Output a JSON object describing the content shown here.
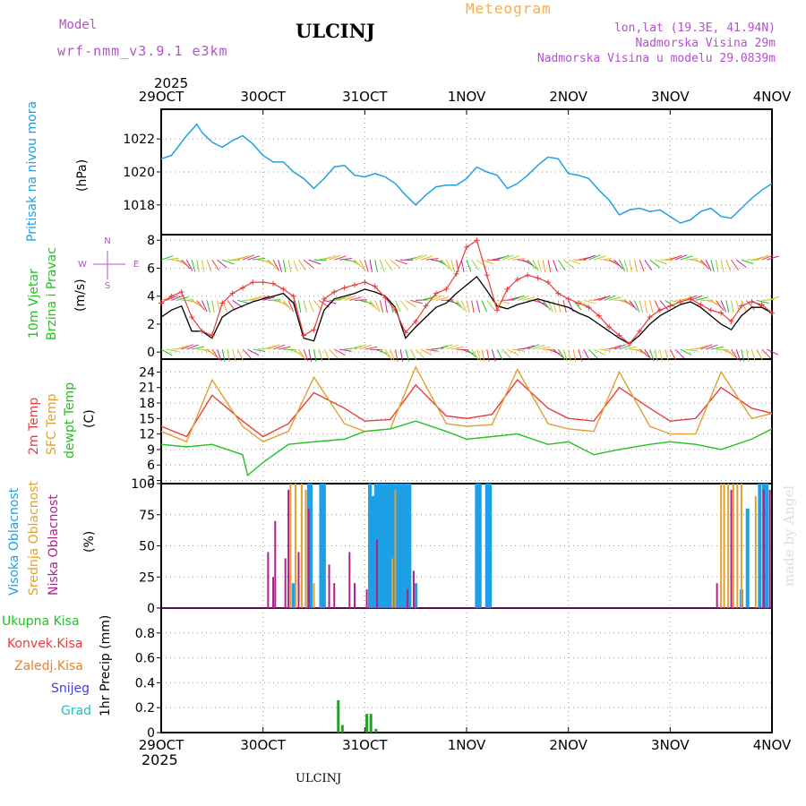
{
  "header": {
    "model_label": "Model",
    "model_name": "wrf-nmm_v3.9.1 e3km",
    "station": "ULCINJ",
    "product": "Meteogram",
    "coords": "lon,lat (19.3E, 41.94N)",
    "elevation": "Nadmorska Visina 29m",
    "model_elevation": "Nadmorska Visina u modelu 29.0839m",
    "watermark": "made by Angel",
    "footer_station": "ULCINJ",
    "top_year": "2025",
    "bottom_year": "2025"
  },
  "colors": {
    "pressure": "#1ea0e6",
    "temp": "#e83c3c",
    "sfc": "#e0a030",
    "dew": "#22c022",
    "wind": "#000000",
    "gust": "#e83c3c",
    "high_cloud": "#1ea0e6",
    "mid_cloud": "#e0a030",
    "low_cloud": "#b0208c",
    "precip": "#22a022",
    "conv": "#e83c3c",
    "frz": "#f08020",
    "snow": "#4040e0",
    "grad": "#20c0c0"
  },
  "chart_data": [
    {
      "type": "line",
      "title": "Pritisak na nivou mora",
      "ylabel": "(hPa)",
      "x_labels": [
        "29OCT",
        "30OCT",
        "31OCT",
        "1NOV",
        "2NOV",
        "3NOV",
        "4NOV"
      ],
      "ylim": [
        1016.2,
        1023.8
      ],
      "yticks": [
        1018,
        1020,
        1022
      ],
      "series": [
        {
          "name": "Pritisak na nivou mora",
          "x": [
            0,
            0.1,
            0.25,
            0.35,
            0.4,
            0.5,
            0.6,
            0.7,
            0.8,
            0.9,
            1.0,
            1.1,
            1.2,
            1.3,
            1.4,
            1.5,
            1.6,
            1.7,
            1.8,
            1.9,
            2.0,
            2.1,
            2.2,
            2.3,
            2.4,
            2.5,
            2.6,
            2.7,
            2.8,
            2.9,
            3.0,
            3.1,
            3.2,
            3.3,
            3.4,
            3.5,
            3.6,
            3.7,
            3.8,
            3.9,
            4.0,
            4.1,
            4.2,
            4.3,
            4.4,
            4.5,
            4.6,
            4.7,
            4.8,
            4.9,
            5.0,
            5.1,
            5.2,
            5.3,
            5.4,
            5.5,
            5.6,
            5.7,
            5.8,
            5.9,
            6.0
          ],
          "values": [
            1020.8,
            1021.0,
            1022.2,
            1022.9,
            1022.4,
            1021.8,
            1021.5,
            1021.9,
            1022.2,
            1021.7,
            1021.0,
            1020.6,
            1020.6,
            1020.0,
            1019.6,
            1019.0,
            1019.6,
            1020.3,
            1020.4,
            1019.8,
            1019.7,
            1019.9,
            1019.7,
            1019.3,
            1018.6,
            1018.0,
            1018.6,
            1019.1,
            1019.2,
            1019.2,
            1019.6,
            1020.3,
            1020.0,
            1019.8,
            1019.0,
            1019.3,
            1019.8,
            1020.4,
            1020.9,
            1020.8,
            1019.9,
            1019.8,
            1019.6,
            1018.9,
            1018.3,
            1017.4,
            1017.7,
            1017.8,
            1017.6,
            1017.7,
            1017.3,
            1016.9,
            1017.1,
            1017.6,
            1017.8,
            1017.3,
            1017.2,
            1017.8,
            1018.4,
            1018.9,
            1019.3
          ]
        }
      ]
    },
    {
      "type": "line",
      "title": "10m Vjetar Brzina i Pravac",
      "ylabel": "(m/s)",
      "ylim": [
        -0.5,
        8.4
      ],
      "yticks": [
        0,
        2,
        4,
        6,
        8
      ],
      "compass": {
        "n": "N",
        "s": "S",
        "e": "E",
        "w": "W"
      },
      "series": [
        {
          "name": "Brzina vjetra",
          "x": [
            0,
            0.1,
            0.2,
            0.3,
            0.4,
            0.5,
            0.6,
            0.7,
            0.8,
            0.9,
            1.0,
            1.1,
            1.2,
            1.3,
            1.4,
            1.5,
            1.6,
            1.7,
            1.8,
            1.9,
            2.0,
            2.1,
            2.2,
            2.3,
            2.4,
            2.5,
            2.6,
            2.7,
            2.8,
            2.9,
            3.0,
            3.1,
            3.2,
            3.3,
            3.4,
            3.5,
            3.6,
            3.7,
            3.8,
            3.9,
            4.0,
            4.1,
            4.2,
            4.3,
            4.4,
            4.5,
            4.6,
            4.7,
            4.8,
            4.9,
            5.0,
            5.1,
            5.2,
            5.3,
            5.4,
            5.5,
            5.6,
            5.7,
            5.8,
            5.9,
            6.0
          ],
          "values": [
            2.5,
            3.0,
            3.3,
            1.5,
            1.5,
            1.0,
            2.5,
            3.0,
            3.3,
            3.6,
            3.8,
            4.0,
            4.2,
            3.5,
            1.0,
            0.8,
            3.0,
            3.8,
            4.0,
            4.2,
            4.5,
            4.3,
            4.0,
            3.2,
            1.0,
            1.8,
            2.5,
            3.2,
            3.5,
            4.2,
            4.8,
            5.4,
            4.4,
            3.3,
            3.1,
            3.4,
            3.6,
            3.8,
            3.6,
            3.4,
            3.2,
            2.8,
            2.5,
            2.0,
            1.5,
            1.0,
            0.6,
            1.2,
            2.0,
            2.6,
            3.0,
            3.4,
            3.6,
            3.2,
            2.6,
            2.0,
            1.6,
            2.6,
            3.2,
            3.2,
            2.8
          ]
        },
        {
          "name": "Udari",
          "x": [
            0,
            0.1,
            0.2,
            0.3,
            0.4,
            0.5,
            0.6,
            0.7,
            0.8,
            0.9,
            1.0,
            1.1,
            1.2,
            1.3,
            1.4,
            1.5,
            1.6,
            1.7,
            1.8,
            1.9,
            2.0,
            2.1,
            2.2,
            2.3,
            2.4,
            2.5,
            2.6,
            2.7,
            2.8,
            2.9,
            3.0,
            3.1,
            3.2,
            3.3,
            3.4,
            3.5,
            3.6,
            3.7,
            3.8,
            3.9,
            4.0,
            4.1,
            4.2,
            4.3,
            4.4,
            4.5,
            4.6,
            4.7,
            4.8,
            4.9,
            5.0,
            5.1,
            5.2,
            5.3,
            5.4,
            5.5,
            5.6,
            5.7,
            5.8,
            5.9,
            6.0
          ],
          "values": [
            3.5,
            4.0,
            4.3,
            2.5,
            1.5,
            1.2,
            3.5,
            4.2,
            4.6,
            5.0,
            5.0,
            4.9,
            4.5,
            4.0,
            1.2,
            1.6,
            3.8,
            4.3,
            4.6,
            4.8,
            5.0,
            4.7,
            3.9,
            3.0,
            1.4,
            2.2,
            3.3,
            4.2,
            4.5,
            5.6,
            7.5,
            8.0,
            5.5,
            3.0,
            4.5,
            5.2,
            5.5,
            5.3,
            5.0,
            4.2,
            3.8,
            3.5,
            3.2,
            2.6,
            1.8,
            1.2,
            0.6,
            1.5,
            2.5,
            3.0,
            3.3,
            3.6,
            3.8,
            3.4,
            3.0,
            2.8,
            2.2,
            3.3,
            3.6,
            3.4,
            2.8
          ]
        }
      ]
    },
    {
      "type": "line",
      "title": "2m Temp / SFC Temp / dewpt Temp",
      "ylabel": "(C)",
      "ylim": [
        2.4,
        26.5
      ],
      "yticks": [
        3,
        6,
        9,
        12,
        15,
        18,
        21,
        24
      ],
      "series": [
        {
          "name": "2m Temp",
          "x": [
            0,
            0.25,
            0.5,
            0.8,
            1.0,
            1.25,
            1.5,
            1.8,
            2.0,
            2.25,
            2.5,
            2.8,
            3.0,
            3.25,
            3.5,
            3.8,
            4.0,
            4.25,
            4.5,
            4.8,
            5.0,
            5.25,
            5.5,
            5.8,
            6.0
          ],
          "values": [
            13.5,
            11.5,
            19.5,
            14.5,
            11.5,
            14.0,
            20.0,
            17.0,
            14.5,
            14.8,
            21.5,
            15.5,
            15.0,
            15.8,
            22.5,
            17.0,
            15.0,
            14.5,
            21.0,
            17.0,
            14.5,
            15.0,
            21.0,
            17.0,
            16.0
          ]
        },
        {
          "name": "SFC Temp",
          "x": [
            0,
            0.25,
            0.5,
            0.8,
            1.0,
            1.25,
            1.5,
            1.8,
            2.0,
            2.25,
            2.5,
            2.8,
            3.0,
            3.25,
            3.5,
            3.8,
            4.0,
            4.25,
            4.5,
            4.8,
            5.0,
            5.25,
            5.5,
            5.8,
            6.0
          ],
          "values": [
            12.5,
            10.5,
            22.5,
            13.5,
            10.5,
            12.5,
            23.0,
            14.0,
            12.5,
            13.0,
            25.0,
            14.0,
            13.5,
            13.8,
            24.5,
            14.0,
            13.0,
            12.5,
            24.0,
            13.5,
            12.0,
            12.0,
            24.0,
            15.0,
            16.0
          ]
        },
        {
          "name": "dewpt Temp",
          "x": [
            0,
            0.25,
            0.5,
            0.8,
            0.85,
            1.0,
            1.25,
            1.5,
            1.8,
            2.0,
            2.25,
            2.5,
            2.8,
            3.0,
            3.25,
            3.5,
            3.8,
            4.0,
            4.25,
            4.5,
            4.8,
            5.0,
            5.25,
            5.5,
            5.8,
            6.0
          ],
          "values": [
            10.0,
            9.5,
            10.0,
            8.0,
            4.0,
            6.5,
            10.0,
            10.5,
            11.0,
            12.5,
            13.0,
            14.5,
            12.5,
            11.0,
            11.5,
            12.0,
            10.0,
            10.5,
            8.0,
            9.0,
            10.0,
            10.5,
            10.0,
            9.0,
            11.0,
            13.0
          ]
        }
      ]
    },
    {
      "type": "bar",
      "title": "Visoka / Srednja / Niska Oblacnost",
      "ylabel": "(%)",
      "ylim": [
        0,
        100
      ],
      "yticks": [
        0,
        25,
        50,
        75,
        100
      ],
      "series": [
        {
          "name": "Visoka Oblacnost",
          "x": [
            1.3,
            1.45,
            1.47,
            1.57,
            1.6,
            2.05,
            2.08,
            2.11,
            2.14,
            2.17,
            2.2,
            2.23,
            2.26,
            2.29,
            2.32,
            2.35,
            2.38,
            2.41,
            2.44,
            2.5,
            3.1,
            3.13,
            3.2,
            3.23,
            5.7,
            5.76,
            5.88,
            5.92,
            5.95
          ],
          "values": [
            20,
            100,
            100,
            100,
            100,
            100,
            90,
            100,
            100,
            100,
            100,
            100,
            100,
            100,
            100,
            100,
            100,
            100,
            100,
            20,
            100,
            100,
            100,
            100,
            15,
            80,
            100,
            100,
            100
          ]
        },
        {
          "name": "Srednja Oblacnost",
          "x": [
            1.27,
            1.32,
            1.38,
            1.42,
            1.5,
            2.27,
            2.3,
            5.5,
            5.53,
            5.57,
            5.62,
            5.66,
            5.7,
            5.84
          ],
          "values": [
            100,
            100,
            100,
            95,
            20,
            40,
            95,
            100,
            100,
            100,
            100,
            100,
            100,
            90
          ]
        },
        {
          "name": "Niska Oblacnost",
          "x": [
            1.05,
            1.1,
            1.12,
            1.22,
            1.25,
            1.35,
            1.45,
            1.65,
            1.7,
            1.85,
            1.9,
            2.02,
            2.12,
            2.42,
            2.48,
            5.46,
            5.6,
            5.92,
            5.98
          ],
          "values": [
            45,
            25,
            70,
            40,
            95,
            45,
            80,
            35,
            20,
            45,
            20,
            15,
            55,
            15,
            30,
            20,
            95,
            95,
            95
          ]
        }
      ]
    },
    {
      "type": "bar",
      "title": "1hr Precip",
      "ylabel": "1hr Precip (mm)",
      "ylim": [
        0,
        1.0
      ],
      "yticks": [
        0,
        0.2,
        0.4,
        0.6,
        0.8
      ],
      "legend": [
        "Ukupna Kisa",
        "Konvek.Kisa",
        "Zaledj.Kisa",
        "Snijeg",
        "Grad"
      ],
      "series": [
        {
          "name": "Ukupna Kisa",
          "x": [
            1.74,
            1.78,
            2.02,
            2.06,
            2.11
          ],
          "values": [
            0.26,
            0.06,
            0.15,
            0.15,
            0.03
          ]
        },
        {
          "name": "Konvek.Kisa",
          "x": [],
          "values": []
        },
        {
          "name": "Zaledj.Kisa",
          "x": [],
          "values": []
        },
        {
          "name": "Snijeg",
          "x": [],
          "values": []
        },
        {
          "name": "Grad",
          "x": [],
          "values": []
        }
      ]
    }
  ]
}
